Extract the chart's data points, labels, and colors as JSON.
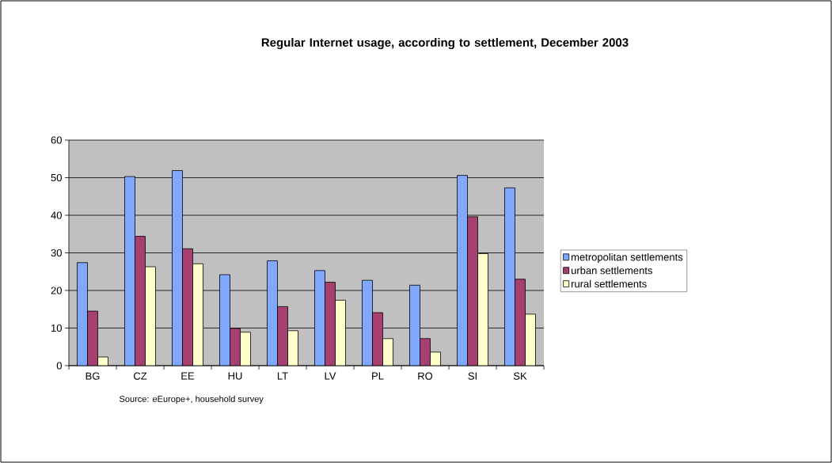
{
  "chart_data": {
    "type": "bar",
    "title": "Regular Internet usage, according to settlement, December 2003",
    "categories": [
      "BG",
      "CZ",
      "EE",
      "HU",
      "LT",
      "LV",
      "PL",
      "RO",
      "SI",
      "SK"
    ],
    "series": [
      {
        "name": "metropolitan settlements",
        "color": "#80a8ff",
        "values": [
          27.4,
          50.3,
          51.9,
          24.2,
          27.9,
          25.3,
          22.7,
          21.4,
          50.6,
          47.3
        ]
      },
      {
        "name": "urban settlements",
        "color": "#a64070",
        "values": [
          14.5,
          34.4,
          31.1,
          9.9,
          15.7,
          22.2,
          14.1,
          7.2,
          39.6,
          23.0
        ]
      },
      {
        "name": "rural settlements",
        "color": "#ffffcc",
        "values": [
          2.3,
          26.3,
          27.1,
          8.9,
          9.3,
          17.4,
          7.2,
          3.6,
          29.8,
          13.7
        ]
      }
    ],
    "ylim": [
      0,
      60
    ],
    "yticks": [
      0,
      10,
      20,
      30,
      40,
      50,
      60
    ],
    "grid": "y",
    "legend": "right",
    "annotations": [
      "Source: eEurope+, household survey"
    ]
  }
}
